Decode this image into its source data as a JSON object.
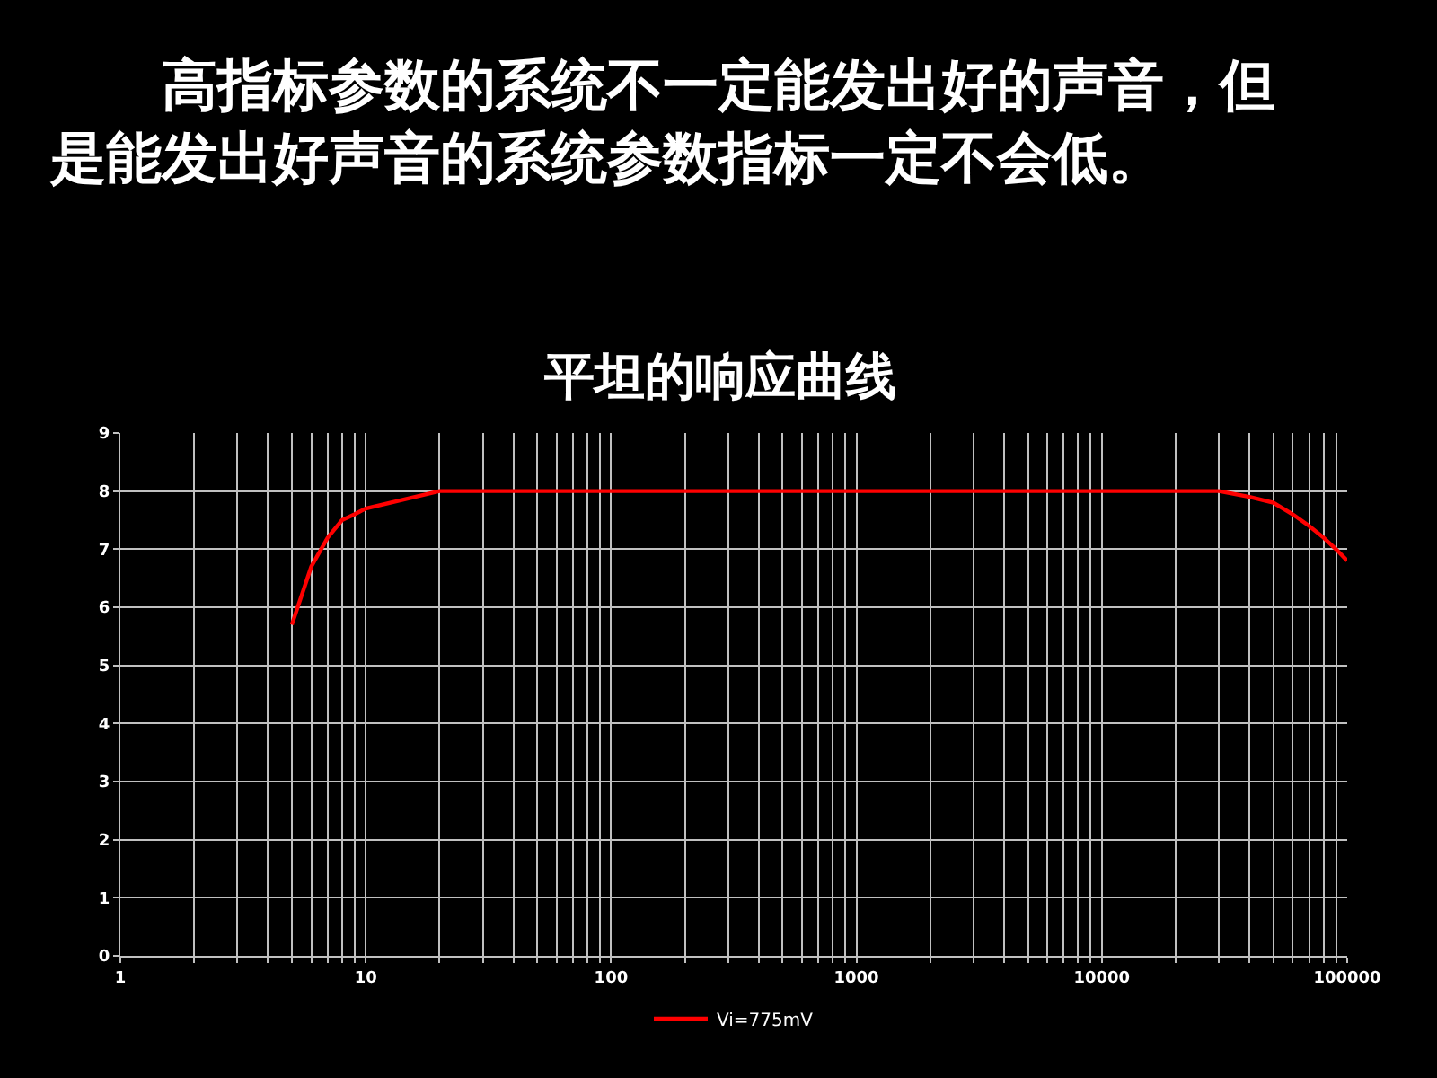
{
  "chart_data": {
    "type": "line",
    "title": "平坦的响应曲线",
    "annotations": [
      "高指标参数的系统不一定能发出好的声音，但是能发出好声音的系统参数指标一定不会低。"
    ],
    "x": [
      5,
      6,
      7,
      8,
      9,
      10,
      20,
      30000,
      40000,
      50000,
      60000,
      70000,
      80000,
      90000,
      100000
    ],
    "series": [
      {
        "name": "Vi=775mV",
        "color": "#ff0000",
        "values": [
          5.7,
          6.7,
          7.2,
          7.5,
          7.6,
          7.7,
          8.0,
          8.0,
          7.9,
          7.8,
          7.6,
          7.4,
          7.2,
          7.0,
          6.8
        ]
      }
    ],
    "log": "x",
    "xlim": [
      1,
      100000
    ],
    "ylim": [
      0,
      9
    ],
    "xticks": [
      1,
      {
        "value": 2,
        "label": null
      },
      {
        "value": 3,
        "label": null
      },
      {
        "value": 4,
        "label": null
      },
      {
        "value": 5,
        "label": null
      },
      {
        "value": 6,
        "label": null
      },
      {
        "value": 7,
        "label": null
      },
      {
        "value": 8,
        "label": null
      },
      {
        "value": 9,
        "label": null
      },
      10,
      {
        "value": 20,
        "label": null
      },
      {
        "value": 30,
        "label": null
      },
      {
        "value": 40,
        "label": null
      },
      {
        "value": 50,
        "label": null
      },
      {
        "value": 60,
        "label": null
      },
      {
        "value": 70,
        "label": null
      },
      {
        "value": 80,
        "label": null
      },
      {
        "value": 90,
        "label": null
      },
      100,
      {
        "value": 200,
        "label": null
      },
      {
        "value": 300,
        "label": null
      },
      {
        "value": 400,
        "label": null
      },
      {
        "value": 500,
        "label": null
      },
      {
        "value": 600,
        "label": null
      },
      {
        "value": 700,
        "label": null
      },
      {
        "value": 800,
        "label": null
      },
      {
        "value": 900,
        "label": null
      },
      1000,
      {
        "value": 2000,
        "label": null
      },
      {
        "value": 3000,
        "label": null
      },
      {
        "value": 4000,
        "label": null
      },
      {
        "value": 5000,
        "label": null
      },
      {
        "value": 6000,
        "label": null
      },
      {
        "value": 7000,
        "label": null
      },
      {
        "value": 8000,
        "label": null
      },
      {
        "value": 9000,
        "label": null
      },
      10000,
      {
        "value": 20000,
        "label": null
      },
      {
        "value": 30000,
        "label": null
      },
      {
        "value": 40000,
        "label": null
      },
      {
        "value": 50000,
        "label": null
      },
      {
        "value": 60000,
        "label": null
      },
      {
        "value": 70000,
        "label": null
      },
      {
        "value": 80000,
        "label": null
      },
      {
        "value": 90000,
        "label": null
      },
      100000
    ],
    "yticks": [
      0,
      1,
      2,
      3,
      4,
      5,
      6,
      7,
      8,
      9
    ],
    "grid": true,
    "legend": "bottom",
    "line_style": "solid"
  }
}
